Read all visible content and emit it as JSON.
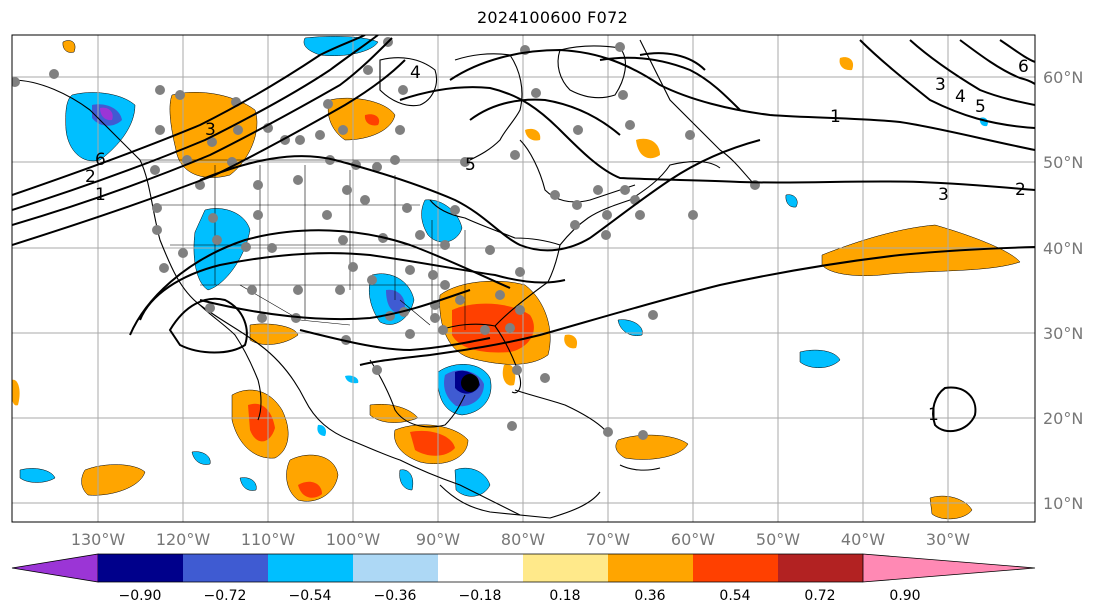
{
  "title": "2024100600 F072",
  "map": {
    "lon_ticks": [
      "130°W",
      "120°W",
      "110°W",
      "100°W",
      "90°W",
      "80°W",
      "70°W",
      "60°W",
      "50°W",
      "40°W",
      "30°W"
    ],
    "lat_ticks": [
      "60°N",
      "50°N",
      "40°N",
      "30°N",
      "20°N",
      "10°N"
    ],
    "contour_labels": [
      "1",
      "2",
      "3",
      "4",
      "5",
      "6",
      "3",
      "2",
      "1",
      "3",
      "4",
      "5",
      "6",
      "1"
    ]
  },
  "colorbar": {
    "labels": [
      "−0.90",
      "−0.72",
      "−0.54",
      "−0.36",
      "−0.18",
      "0.18",
      "0.36",
      "0.54",
      "0.72",
      "0.90"
    ],
    "colors": [
      "#9b35d6",
      "#00008b",
      "#3f5bd2",
      "#00bfff",
      "#add8f5",
      "#ffffff",
      "#ffe98a",
      "#ffa500",
      "#ff4000",
      "#b22222",
      "#ff89b4"
    ]
  },
  "colors": {
    "pos_light": "#ffe98a",
    "pos": "#ffa500",
    "pos_strong": "#ff4000",
    "neg_light": "#add8f5",
    "neg": "#00bfff",
    "neg_strong": "#3f5bd2",
    "neg_deep": "#00008b",
    "station_dot": "#808080"
  }
}
